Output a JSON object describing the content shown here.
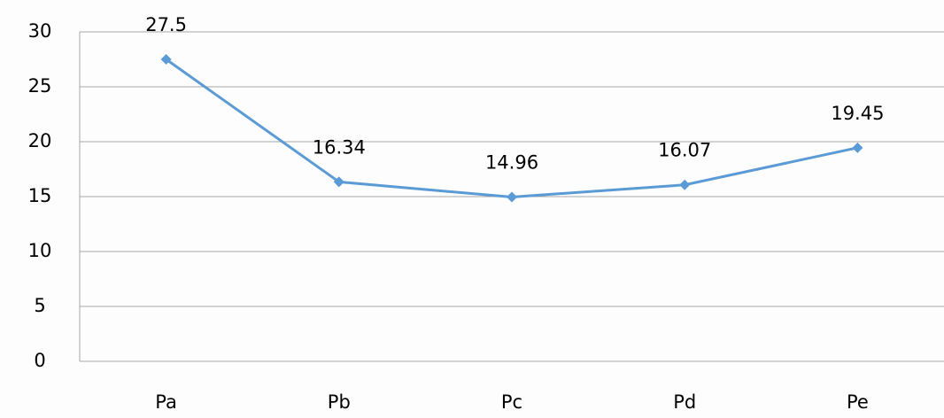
{
  "chart_data": {
    "type": "line",
    "categories": [
      "Pa",
      "Pb",
      "Pc",
      "Pd",
      "Pe"
    ],
    "values": [
      27.5,
      16.34,
      14.96,
      16.07,
      19.45
    ],
    "color": "#5b9bd5",
    "ylim": [
      0,
      30
    ],
    "yticks": [
      0,
      5,
      10,
      15,
      20,
      25,
      30
    ],
    "grid": true
  }
}
